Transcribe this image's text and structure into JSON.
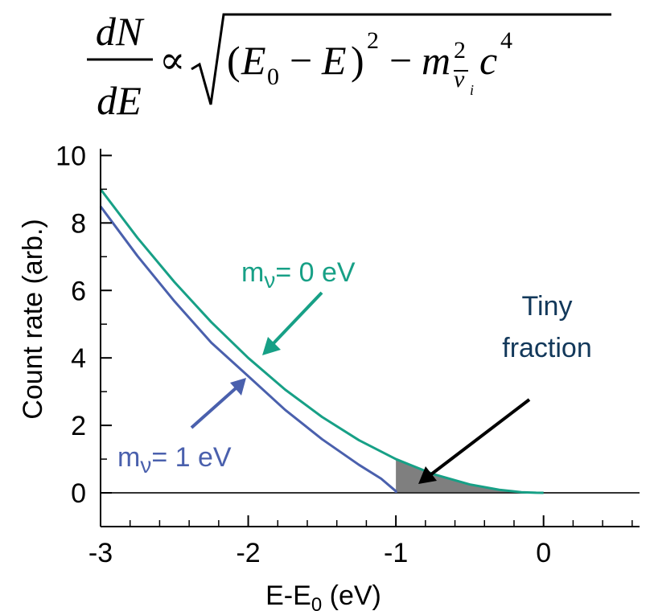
{
  "formula": {
    "lhs_numerator": "dN",
    "lhs_denominator": "dE",
    "proportional_symbol": "∝",
    "term_open": "(",
    "E0_base": "E",
    "E0_sub": "0",
    "minus_1": "−",
    "E_var": "E",
    "term_close": ")",
    "square_exp": "2",
    "minus_2": "−",
    "m_var": "m",
    "m_sup": "2",
    "nu_bar": "ν",
    "nu_sub": "i",
    "c_var": "c",
    "c_exp": "4"
  },
  "chart_data": {
    "type": "line",
    "xlabel": "E-E",
    "xlabel_sub": "0",
    "xlabel_unit": " (eV)",
    "ylabel": "Count rate (arb.)",
    "xlim": [
      -3,
      0.65
    ],
    "ylim": [
      -1,
      10.2
    ],
    "x_ticks": [
      -3,
      -2,
      -1,
      0
    ],
    "x_tick_labels": [
      "-3",
      "-2",
      "-1",
      "0"
    ],
    "y_ticks": [
      0,
      2,
      4,
      6,
      8,
      10
    ],
    "y_tick_labels": [
      "0",
      "2",
      "4",
      "6",
      "8",
      "10"
    ],
    "series": [
      {
        "label_main": "m",
        "label_sub": "ν",
        "label_rest": "= 0 eV",
        "color": "#17a086",
        "x": [
          -3,
          -2.75,
          -2.5,
          -2.25,
          -2,
          -1.75,
          -1.5,
          -1.25,
          -1,
          -0.75,
          -0.5,
          -0.3,
          -0.15,
          -0.05,
          0
        ],
        "y": [
          9.0,
          7.56,
          6.25,
          5.06,
          4.0,
          3.06,
          2.25,
          1.56,
          1.0,
          0.56,
          0.25,
          0.09,
          0.02,
          0.003,
          0
        ]
      },
      {
        "label_main": "m",
        "label_sub": "ν",
        "label_rest": "= 1 eV",
        "color": "#4a60ad",
        "x": [
          -3,
          -2.75,
          -2.5,
          -2.25,
          -2,
          -1.75,
          -1.5,
          -1.25,
          -1.1,
          -1.03,
          -1.0,
          -1.0
        ],
        "y": [
          8.49,
          7.02,
          5.68,
          4.45,
          3.46,
          2.46,
          1.59,
          0.83,
          0.42,
          0.16,
          0.05,
          0
        ]
      }
    ],
    "baseline": {
      "y": 0,
      "color": "#333333"
    },
    "shaded_region": {
      "x_from": -1,
      "x_to": 0,
      "color": "#7f7f7f"
    },
    "annotations": [
      {
        "text_line1": "Tiny",
        "text_line2": "fraction",
        "color": "#12385a"
      }
    ],
    "arrow_colors": {
      "teal": "#17a086",
      "blue": "#4a60ad",
      "black": "#000000"
    }
  }
}
